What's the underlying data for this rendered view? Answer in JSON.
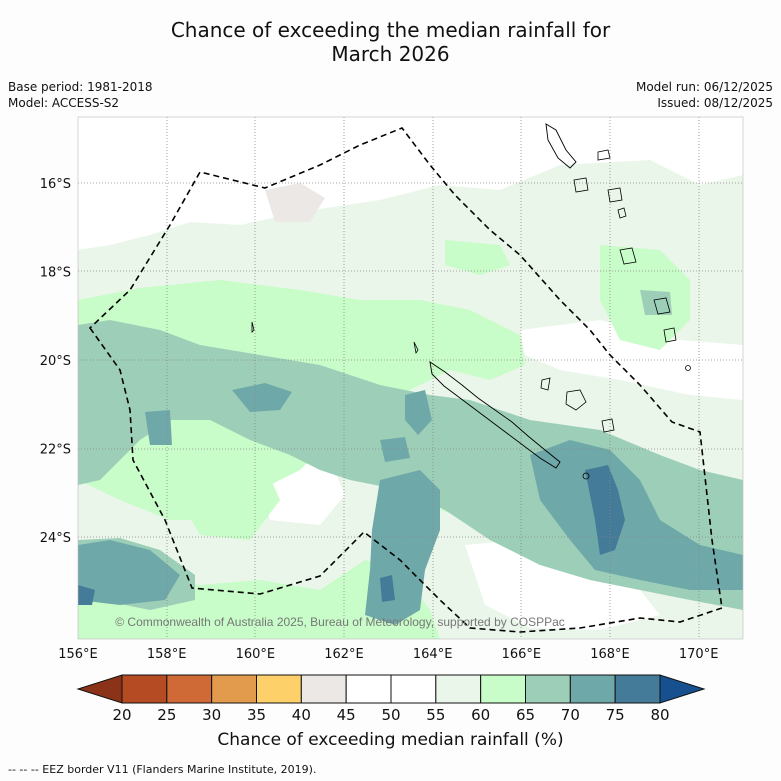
{
  "title_line1": "Chance of exceeding the median rainfall for",
  "title_line2": "March 2026",
  "meta": {
    "base_period": "Base period: 1981-2018",
    "model": "Model: ACCESS-S2",
    "model_run": "Model run: 06/12/2025",
    "issued": "Issued: 08/12/2025"
  },
  "map": {
    "lat_labels": [
      "16°S",
      "18°S",
      "20°S",
      "22°S",
      "24°S"
    ],
    "lat_values": [
      -16,
      -18,
      -20,
      -22,
      -24
    ],
    "lon_labels": [
      "156°E",
      "158°E",
      "160°E",
      "162°E",
      "164°E",
      "166°E",
      "168°E",
      "170°E"
    ],
    "lon_values": [
      156,
      158,
      160,
      162,
      164,
      166,
      168,
      170
    ],
    "copyright": "© Commonwealth of Australia 2025, Bureau of Meteorology, supported by COSPPac"
  },
  "colorbar": {
    "ticks": [
      "20",
      "25",
      "30",
      "35",
      "40",
      "45",
      "50",
      "55",
      "60",
      "65",
      "70",
      "75",
      "80"
    ],
    "colors": [
      "#b44b23",
      "#cf6935",
      "#e29a4c",
      "#fdd06a",
      "#ebe8e5",
      "#ffffff",
      "#ffffff",
      "#eaf6ea",
      "#c8fcc8",
      "#9dcfb8",
      "#6fa8a8",
      "#447b98"
    ],
    "under_color": "#8b3318",
    "over_color": "#16508e",
    "title": "Chance of exceeding median rainfall (%)"
  },
  "footnote": "--  --  -- EEZ border V11 (Flanders Marine Institute, 2019)."
}
